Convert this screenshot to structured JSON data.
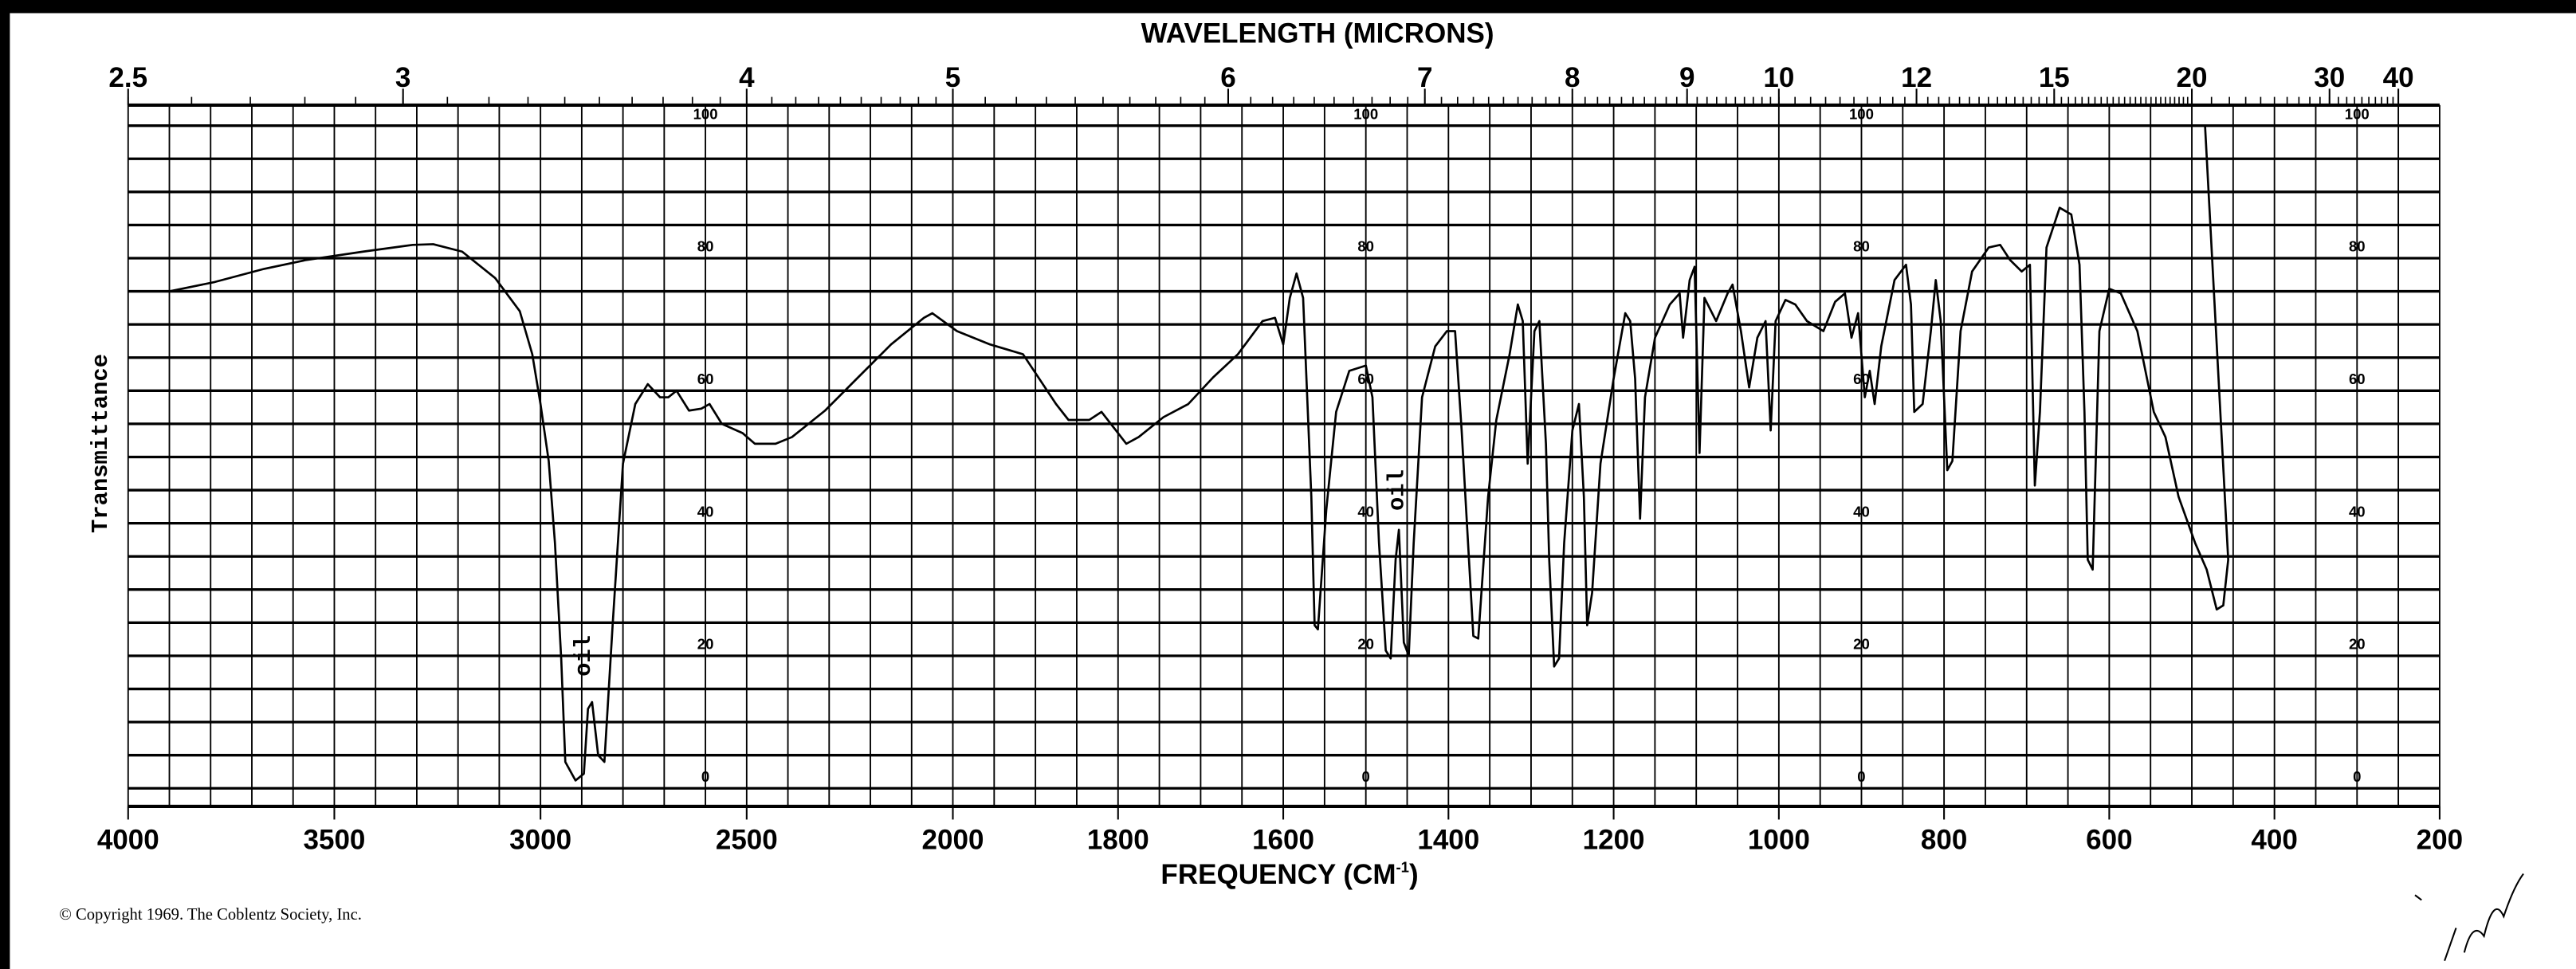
{
  "chart_data": {
    "type": "line",
    "title": "",
    "top_axis_label": "WAVELENGTH (MICRONS)",
    "xlabel": "FREQUENCY (CM-1)",
    "xlabel_main": "FREQUENCY (CM",
    "xlabel_sup": "-1",
    "xlabel_close": ")",
    "ylabel": "Transmittance",
    "xlim": [
      4000,
      200
    ],
    "ylim": [
      0,
      100
    ],
    "x_scale_change_at": 2000,
    "grid": true,
    "line_color": "#000000",
    "x_tick_labels": [
      "4000",
      "3500",
      "3000",
      "2500",
      "2000",
      "1800",
      "1600",
      "1400",
      "1200",
      "1000",
      "800",
      "600",
      "400",
      "200"
    ],
    "wavelength_tick_labels": [
      "2.5",
      "3",
      "4",
      "5",
      "6",
      "7",
      "8",
      "9",
      "10",
      "12",
      "15",
      "20",
      "30",
      "40"
    ],
    "y_tick_labels": [
      "100",
      "80",
      "60",
      "40",
      "20",
      "0"
    ],
    "annotations": [
      {
        "text": "oil",
        "x": 2880,
        "y": 20
      },
      {
        "text": "oil",
        "x": 1455,
        "y": 45
      }
    ],
    "points": [
      [
        3900,
        75
      ],
      [
        3790,
        76.4
      ],
      [
        3670,
        78.4
      ],
      [
        3570,
        79.7
      ],
      [
        3430,
        81
      ],
      [
        3310,
        82
      ],
      [
        3260,
        82.1
      ],
      [
        3190,
        81
      ],
      [
        3110,
        77
      ],
      [
        3050,
        72
      ],
      [
        3020,
        65.5
      ],
      [
        3000,
        58
      ],
      [
        2980,
        49.4
      ],
      [
        2965,
        37
      ],
      [
        2950,
        19.6
      ],
      [
        2940,
        4
      ],
      [
        2915,
        1.2
      ],
      [
        2895,
        2.2
      ],
      [
        2885,
        12
      ],
      [
        2875,
        13
      ],
      [
        2860,
        5
      ],
      [
        2845,
        4
      ],
      [
        2825,
        24.6
      ],
      [
        2800,
        49
      ],
      [
        2770,
        58
      ],
      [
        2740,
        61
      ],
      [
        2710,
        59
      ],
      [
        2690,
        59
      ],
      [
        2670,
        60
      ],
      [
        2640,
        57
      ],
      [
        2610,
        57.3
      ],
      [
        2590,
        58
      ],
      [
        2560,
        55
      ],
      [
        2510,
        53.6
      ],
      [
        2480,
        52
      ],
      [
        2430,
        52
      ],
      [
        2390,
        53
      ],
      [
        2310,
        57
      ],
      [
        2230,
        62
      ],
      [
        2150,
        67
      ],
      [
        2070,
        71
      ],
      [
        2050,
        71.7
      ],
      [
        1995,
        69
      ],
      [
        1955,
        67
      ],
      [
        1915,
        65.5
      ],
      [
        1875,
        58
      ],
      [
        1860,
        55.6
      ],
      [
        1835,
        55.6
      ],
      [
        1820,
        56.8
      ],
      [
        1790,
        52
      ],
      [
        1775,
        53
      ],
      [
        1745,
        56
      ],
      [
        1715,
        58
      ],
      [
        1685,
        62
      ],
      [
        1655,
        65.5
      ],
      [
        1625,
        70.5
      ],
      [
        1610,
        71
      ],
      [
        1600,
        67
      ],
      [
        1592,
        74
      ],
      [
        1584,
        77.7
      ],
      [
        1576,
        74
      ],
      [
        1566,
        44
      ],
      [
        1562,
        24.6
      ],
      [
        1558,
        24
      ],
      [
        1548,
        42
      ],
      [
        1536,
        56.8
      ],
      [
        1520,
        63
      ],
      [
        1500,
        63.8
      ],
      [
        1492,
        59
      ],
      [
        1484,
        37
      ],
      [
        1476,
        20.8
      ],
      [
        1470,
        19.6
      ],
      [
        1464,
        34.5
      ],
      [
        1460,
        39
      ],
      [
        1454,
        22
      ],
      [
        1448,
        20
      ],
      [
        1442,
        37
      ],
      [
        1432,
        59
      ],
      [
        1416,
        66.7
      ],
      [
        1402,
        69
      ],
      [
        1392,
        69
      ],
      [
        1384,
        54
      ],
      [
        1370,
        23
      ],
      [
        1364,
        22.6
      ],
      [
        1352,
        44
      ],
      [
        1342,
        55.6
      ],
      [
        1326,
        65.5
      ],
      [
        1316,
        73
      ],
      [
        1310,
        70.5
      ],
      [
        1304,
        49
      ],
      [
        1296,
        69
      ],
      [
        1290,
        70.5
      ],
      [
        1282,
        52
      ],
      [
        1278,
        34.5
      ],
      [
        1272,
        18.4
      ],
      [
        1266,
        19.6
      ],
      [
        1260,
        37
      ],
      [
        1250,
        54
      ],
      [
        1242,
        58
      ],
      [
        1236,
        44
      ],
      [
        1232,
        24.6
      ],
      [
        1226,
        29.5
      ],
      [
        1216,
        49
      ],
      [
        1200,
        61.8
      ],
      [
        1186,
        71.7
      ],
      [
        1180,
        70.5
      ],
      [
        1174,
        61.8
      ],
      [
        1168,
        40.7
      ],
      [
        1162,
        59
      ],
      [
        1150,
        68
      ],
      [
        1132,
        73
      ],
      [
        1120,
        74.7
      ],
      [
        1116,
        68
      ],
      [
        1108,
        76.7
      ],
      [
        1102,
        78.7
      ],
      [
        1096,
        50.6
      ],
      [
        1090,
        74
      ],
      [
        1076,
        70.5
      ],
      [
        1062,
        74.7
      ],
      [
        1056,
        76
      ],
      [
        1046,
        69
      ],
      [
        1036,
        60.5
      ],
      [
        1026,
        68
      ],
      [
        1016,
        70.5
      ],
      [
        1010,
        54
      ],
      [
        1004,
        70.5
      ],
      [
        992,
        73.7
      ],
      [
        980,
        73
      ],
      [
        966,
        70.5
      ],
      [
        946,
        69
      ],
      [
        932,
        73.4
      ],
      [
        920,
        74.7
      ],
      [
        912,
        68
      ],
      [
        904,
        71.7
      ],
      [
        896,
        59
      ],
      [
        890,
        63
      ],
      [
        884,
        58
      ],
      [
        876,
        66.7
      ],
      [
        860,
        76.7
      ],
      [
        846,
        79
      ],
      [
        840,
        73
      ],
      [
        836,
        56.8
      ],
      [
        826,
        58
      ],
      [
        816,
        69
      ],
      [
        810,
        76.7
      ],
      [
        804,
        70.5
      ],
      [
        796,
        48
      ],
      [
        790,
        49.4
      ],
      [
        780,
        69
      ],
      [
        766,
        78
      ],
      [
        746,
        81.6
      ],
      [
        732,
        82
      ],
      [
        720,
        79.7
      ],
      [
        706,
        78
      ],
      [
        696,
        79
      ],
      [
        690,
        45.7
      ],
      [
        684,
        56.8
      ],
      [
        676,
        81.6
      ],
      [
        660,
        87.6
      ],
      [
        646,
        86.6
      ],
      [
        636,
        79
      ],
      [
        630,
        56.8
      ],
      [
        626,
        34.5
      ],
      [
        620,
        33
      ],
      [
        612,
        69
      ],
      [
        600,
        75.4
      ],
      [
        586,
        74.7
      ],
      [
        566,
        69
      ],
      [
        546,
        56.8
      ],
      [
        532,
        53
      ],
      [
        516,
        44
      ],
      [
        496,
        37
      ],
      [
        482,
        33
      ],
      [
        470,
        27
      ],
      [
        462,
        27.6
      ],
      [
        456,
        34.5
      ],
      [
        484,
        100
      ]
    ]
  },
  "footer": {
    "copyright": "© Copyright 1969.  The Coblentz Society, Inc."
  }
}
